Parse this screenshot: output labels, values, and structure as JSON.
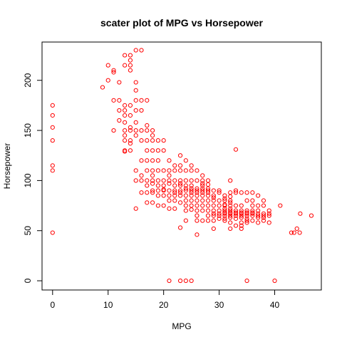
{
  "chart_data": {
    "type": "scatter",
    "title": "scater plot of MPG vs Horsepower",
    "xlabel": "MPG",
    "ylabel": "Horsepower",
    "xlim": [
      -1.9,
      48.4
    ],
    "ylim": [
      -9.2,
      238.2
    ],
    "x_ticks": [
      0,
      10,
      20,
      30,
      40
    ],
    "y_ticks": [
      0,
      50,
      100,
      150,
      200
    ],
    "point_color": "#ff0000",
    "grid": false,
    "series": [
      {
        "points": [
          [
            0,
            175
          ],
          [
            0,
            165
          ],
          [
            0,
            153
          ],
          [
            0,
            140
          ],
          [
            0,
            115
          ],
          [
            0,
            110
          ],
          [
            0,
            48
          ],
          [
            9,
            193
          ],
          [
            10,
            215
          ],
          [
            10,
            200
          ],
          [
            11,
            210
          ],
          [
            11,
            208
          ],
          [
            11,
            180
          ],
          [
            11,
            150
          ],
          [
            12,
            198
          ],
          [
            12,
            180
          ],
          [
            12,
            170
          ],
          [
            12,
            160
          ],
          [
            13,
            225
          ],
          [
            13,
            215
          ],
          [
            13,
            175
          ],
          [
            13,
            170
          ],
          [
            13,
            165
          ],
          [
            13,
            158
          ],
          [
            13,
            150
          ],
          [
            13,
            145
          ],
          [
            13,
            140
          ],
          [
            13,
            130
          ],
          [
            13,
            129
          ],
          [
            14,
            225
          ],
          [
            14,
            220
          ],
          [
            14,
            215
          ],
          [
            14,
            210
          ],
          [
            14,
            175
          ],
          [
            14,
            165
          ],
          [
            14,
            153
          ],
          [
            14,
            150
          ],
          [
            14,
            140
          ],
          [
            14,
            137
          ],
          [
            14,
            130
          ],
          [
            15,
            230
          ],
          [
            15,
            198
          ],
          [
            15,
            190
          ],
          [
            15,
            180
          ],
          [
            15,
            170
          ],
          [
            15,
            158
          ],
          [
            15,
            150
          ],
          [
            15,
            145
          ],
          [
            15,
            110
          ],
          [
            15,
            100
          ],
          [
            15,
            72
          ],
          [
            16,
            230
          ],
          [
            16,
            180
          ],
          [
            16,
            170
          ],
          [
            16,
            150
          ],
          [
            16,
            140
          ],
          [
            16,
            120
          ],
          [
            16,
            105
          ],
          [
            16,
            100
          ],
          [
            16,
            88
          ],
          [
            17,
            180
          ],
          [
            17,
            155
          ],
          [
            17,
            150
          ],
          [
            17,
            140
          ],
          [
            17,
            130
          ],
          [
            17,
            120
          ],
          [
            17,
            110
          ],
          [
            17,
            100
          ],
          [
            17,
            95
          ],
          [
            17,
            88
          ],
          [
            17,
            78
          ],
          [
            18,
            150
          ],
          [
            18,
            145
          ],
          [
            18,
            140
          ],
          [
            18,
            130
          ],
          [
            18,
            120
          ],
          [
            18,
            110
          ],
          [
            18,
            105
          ],
          [
            18,
            100
          ],
          [
            18,
            97
          ],
          [
            18,
            90
          ],
          [
            18,
            88
          ],
          [
            18,
            78
          ],
          [
            19,
            140
          ],
          [
            19,
            130
          ],
          [
            19,
            120
          ],
          [
            19,
            110
          ],
          [
            19,
            100
          ],
          [
            19,
            95
          ],
          [
            19,
            90
          ],
          [
            19,
            85
          ],
          [
            19,
            75
          ],
          [
            20,
            140
          ],
          [
            20,
            130
          ],
          [
            20,
            110
          ],
          [
            20,
            100
          ],
          [
            20,
            95
          ],
          [
            20,
            91
          ],
          [
            20,
            90
          ],
          [
            20,
            85
          ],
          [
            20,
            75
          ],
          [
            21,
            120
          ],
          [
            21,
            110
          ],
          [
            21,
            105
          ],
          [
            21,
            100
          ],
          [
            21,
            97
          ],
          [
            21,
            90
          ],
          [
            21,
            85
          ],
          [
            21,
            80
          ],
          [
            21,
            72
          ],
          [
            21,
            0
          ],
          [
            22,
            115
          ],
          [
            22,
            110
          ],
          [
            22,
            100
          ],
          [
            22,
            95
          ],
          [
            22,
            90
          ],
          [
            22,
            88
          ],
          [
            22,
            85
          ],
          [
            22,
            80
          ],
          [
            22,
            72
          ],
          [
            23,
            125
          ],
          [
            23,
            115
          ],
          [
            23,
            110
          ],
          [
            23,
            100
          ],
          [
            23,
            97
          ],
          [
            23,
            95
          ],
          [
            23,
            90
          ],
          [
            23,
            88
          ],
          [
            23,
            85
          ],
          [
            23,
            78
          ],
          [
            23,
            53
          ],
          [
            23,
            0
          ],
          [
            24,
            120
          ],
          [
            24,
            110
          ],
          [
            24,
            100
          ],
          [
            24,
            95
          ],
          [
            24,
            92
          ],
          [
            24,
            90
          ],
          [
            24,
            85
          ],
          [
            24,
            80
          ],
          [
            24,
            75
          ],
          [
            24,
            70
          ],
          [
            24,
            60
          ],
          [
            24,
            0
          ],
          [
            25,
            115
          ],
          [
            25,
            110
          ],
          [
            25,
            100
          ],
          [
            25,
            95
          ],
          [
            25,
            92
          ],
          [
            25,
            90
          ],
          [
            25,
            88
          ],
          [
            25,
            85
          ],
          [
            25,
            80
          ],
          [
            25,
            75
          ],
          [
            25,
            71
          ],
          [
            25,
            0
          ],
          [
            26,
            110
          ],
          [
            26,
            100
          ],
          [
            26,
            92
          ],
          [
            26,
            90
          ],
          [
            26,
            88
          ],
          [
            26,
            85
          ],
          [
            26,
            80
          ],
          [
            26,
            75
          ],
          [
            26,
            70
          ],
          [
            26,
            65
          ],
          [
            26,
            60
          ],
          [
            26,
            46
          ],
          [
            27,
            105
          ],
          [
            27,
            100
          ],
          [
            27,
            97
          ],
          [
            27,
            95
          ],
          [
            27,
            92
          ],
          [
            27,
            90
          ],
          [
            27,
            88
          ],
          [
            27,
            85
          ],
          [
            27,
            80
          ],
          [
            27,
            75
          ],
          [
            27,
            70
          ],
          [
            27,
            60
          ],
          [
            28,
            100
          ],
          [
            28,
            96
          ],
          [
            28,
            92
          ],
          [
            28,
            90
          ],
          [
            28,
            88
          ],
          [
            28,
            85
          ],
          [
            28,
            80
          ],
          [
            28,
            75
          ],
          [
            28,
            70
          ],
          [
            28,
            65
          ],
          [
            28,
            60
          ],
          [
            29,
            90
          ],
          [
            29,
            85
          ],
          [
            29,
            83
          ],
          [
            29,
            80
          ],
          [
            29,
            75
          ],
          [
            29,
            70
          ],
          [
            29,
            67
          ],
          [
            29,
            65
          ],
          [
            29,
            60
          ],
          [
            29,
            52
          ],
          [
            30,
            90
          ],
          [
            30,
            88
          ],
          [
            30,
            80
          ],
          [
            30,
            75
          ],
          [
            30,
            70
          ],
          [
            30,
            67
          ],
          [
            30,
            65
          ],
          [
            30,
            62
          ],
          [
            31,
            85
          ],
          [
            31,
            82
          ],
          [
            31,
            80
          ],
          [
            31,
            76
          ],
          [
            31,
            75
          ],
          [
            31,
            72
          ],
          [
            31,
            70
          ],
          [
            31,
            68
          ],
          [
            31,
            67
          ],
          [
            31,
            65
          ],
          [
            31,
            62
          ],
          [
            31,
            60
          ],
          [
            32,
            100
          ],
          [
            32,
            88
          ],
          [
            32,
            84
          ],
          [
            32,
            80
          ],
          [
            32,
            78
          ],
          [
            32,
            75
          ],
          [
            32,
            72
          ],
          [
            32,
            70
          ],
          [
            32,
            68
          ],
          [
            32,
            67
          ],
          [
            32,
            65
          ],
          [
            32,
            63
          ],
          [
            32,
            58
          ],
          [
            32,
            52
          ],
          [
            33,
            131
          ],
          [
            33,
            90
          ],
          [
            33,
            88
          ],
          [
            33,
            75
          ],
          [
            33,
            70
          ],
          [
            33,
            68
          ],
          [
            33,
            67
          ],
          [
            33,
            65
          ],
          [
            33,
            62
          ],
          [
            33,
            55
          ],
          [
            34,
            88
          ],
          [
            34,
            75
          ],
          [
            34,
            70
          ],
          [
            34,
            68
          ],
          [
            34,
            67
          ],
          [
            34,
            65
          ],
          [
            34,
            63
          ],
          [
            34,
            58
          ],
          [
            34,
            55
          ],
          [
            34,
            52
          ],
          [
            35,
            88
          ],
          [
            35,
            80
          ],
          [
            35,
            70
          ],
          [
            35,
            68
          ],
          [
            35,
            67
          ],
          [
            35,
            65
          ],
          [
            35,
            62
          ],
          [
            35,
            60
          ],
          [
            35,
            58
          ],
          [
            35,
            0
          ],
          [
            36,
            88
          ],
          [
            36,
            80
          ],
          [
            36,
            75
          ],
          [
            36,
            70
          ],
          [
            36,
            68
          ],
          [
            36,
            67
          ],
          [
            36,
            65
          ],
          [
            36,
            60
          ],
          [
            37,
            85
          ],
          [
            37,
            75
          ],
          [
            37,
            70
          ],
          [
            37,
            67
          ],
          [
            37,
            65
          ],
          [
            37,
            63
          ],
          [
            37,
            58
          ],
          [
            38,
            80
          ],
          [
            38,
            75
          ],
          [
            38,
            67
          ],
          [
            38,
            65
          ],
          [
            38,
            63
          ],
          [
            38,
            60
          ],
          [
            39,
            70
          ],
          [
            39,
            67
          ],
          [
            39,
            65
          ],
          [
            39,
            58
          ],
          [
            40,
            0
          ],
          [
            41,
            75
          ],
          [
            43,
            48
          ],
          [
            43.5,
            48
          ],
          [
            44,
            52
          ],
          [
            44.5,
            48
          ],
          [
            44.6,
            67
          ],
          [
            46.6,
            65
          ]
        ]
      }
    ]
  }
}
